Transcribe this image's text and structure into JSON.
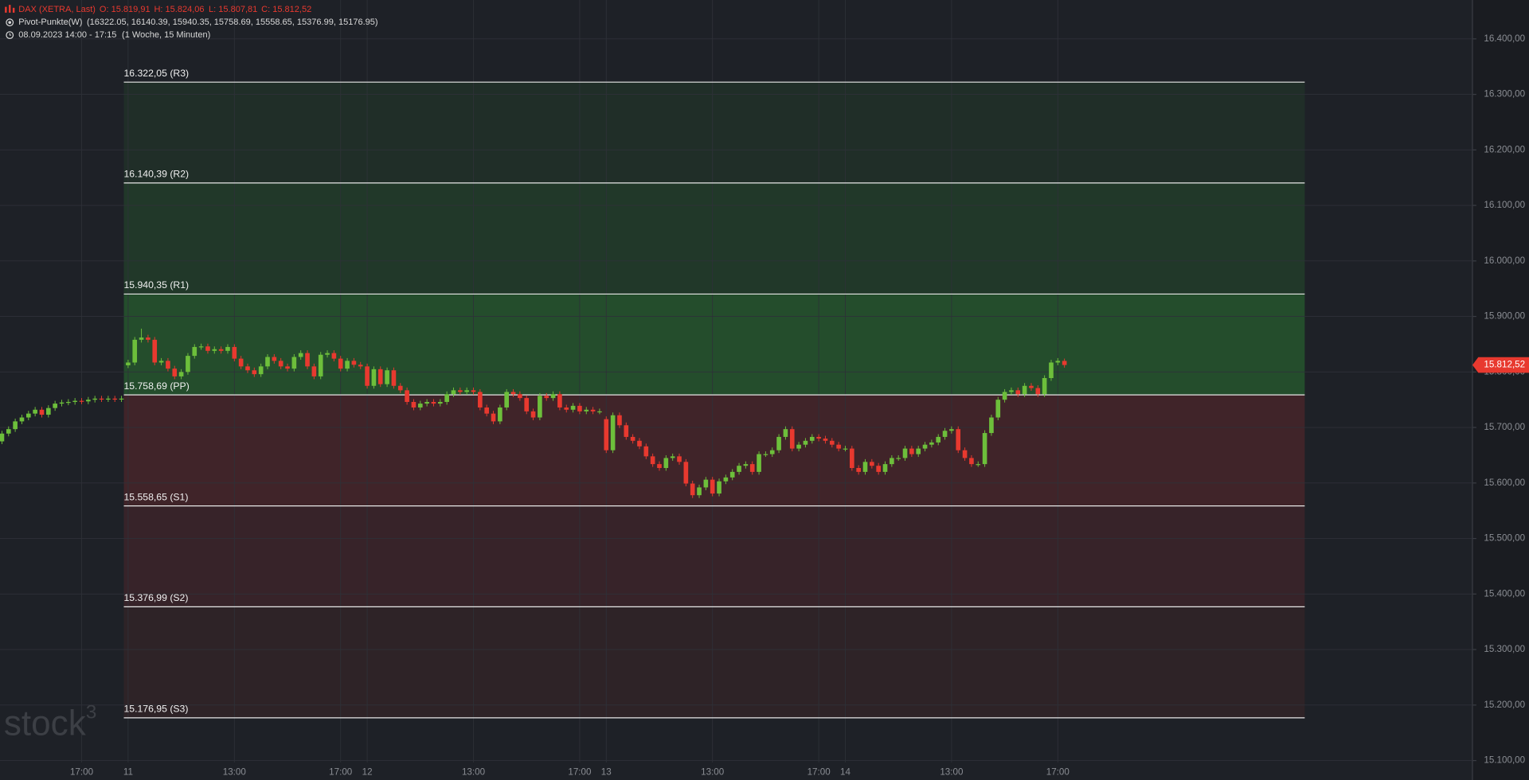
{
  "header": {
    "symbol": "DAX (XETRA, Last)",
    "ohlc": [
      "O: 15.819,91",
      "H: 15.824,06",
      "L: 15.807,81",
      "C: 15.812,52"
    ],
    "indicator": "Pivot-Punkte(W)",
    "indicator_values": "(16322.05,  16140.39,  15940.35,  15758.69,  15558.65,  15376.99,  15176.95)",
    "period": "08.09.2023 14:00 - 17:15",
    "period_info": "(1 Woche, 15 Minuten)"
  },
  "watermark": {
    "text": "stock",
    "sup": "3"
  },
  "chart_data": {
    "type": "candlestick",
    "ylim": [
      15065,
      16470
    ],
    "yticks": [
      {
        "value": 16400,
        "label": "16.400,00"
      },
      {
        "value": 16300,
        "label": "16.300,00"
      },
      {
        "value": 16200,
        "label": "16.200,00"
      },
      {
        "value": 16100,
        "label": "16.100,00"
      },
      {
        "value": 16000,
        "label": "16.000,00"
      },
      {
        "value": 15900,
        "label": "15.900,00"
      },
      {
        "value": 15800,
        "label": "15.800,00"
      },
      {
        "value": 15700,
        "label": "15.700,00"
      },
      {
        "value": 15600,
        "label": "15.600,00"
      },
      {
        "value": 15500,
        "label": "15.500,00"
      },
      {
        "value": 15400,
        "label": "15.400,00"
      },
      {
        "value": 15300,
        "label": "15.300,00"
      },
      {
        "value": 15200,
        "label": "15.200,00"
      },
      {
        "value": 15100,
        "label": "15.100,00"
      }
    ],
    "grid": true,
    "up_color": "#6dbf3b",
    "down_color": "#e8392f",
    "above_color": "#2e8b34",
    "below_color": "#7a2a2e",
    "pivots": [
      {
        "value": 16322.05,
        "label": "16.322,05 (R3)"
      },
      {
        "value": 16140.39,
        "label": "16.140,39 (R2)"
      },
      {
        "value": 15940.35,
        "label": "15.940,35 (R1)"
      },
      {
        "value": 15758.69,
        "label": "15.758,69 (PP)"
      },
      {
        "value": 15558.65,
        "label": "15.558,65 (S1)"
      },
      {
        "value": 15376.99,
        "label": "15.376,99 (S2)"
      },
      {
        "value": 15176.95,
        "label": "15.176,95 (S3)"
      }
    ],
    "last_price": {
      "value": 15812.52,
      "label": "15.812,52"
    },
    "categories": [
      null,
      null,
      null,
      null,
      null,
      null,
      null,
      null,
      null,
      null,
      null,
      null,
      "17:00",
      null,
      null,
      null,
      null,
      null,
      null,
      "11",
      null,
      null,
      null,
      null,
      null,
      null,
      null,
      null,
      null,
      null,
      null,
      null,
      null,
      null,
      null,
      "13:00",
      null,
      null,
      null,
      null,
      null,
      null,
      null,
      null,
      null,
      null,
      null,
      null,
      null,
      null,
      null,
      "17:00",
      null,
      null,
      null,
      "12",
      null,
      null,
      null,
      null,
      null,
      null,
      null,
      null,
      null,
      null,
      null,
      null,
      null,
      null,
      null,
      "13:00",
      null,
      null,
      null,
      null,
      null,
      null,
      null,
      null,
      null,
      null,
      null,
      null,
      null,
      null,
      null,
      "17:00",
      null,
      null,
      null,
      "13",
      null,
      null,
      null,
      null,
      null,
      null,
      null,
      null,
      null,
      null,
      null,
      null,
      null,
      null,
      null,
      "13:00",
      null,
      null,
      null,
      null,
      null,
      null,
      null,
      null,
      null,
      null,
      null,
      null,
      null,
      null,
      null,
      "17:00",
      null,
      null,
      null,
      "14",
      null,
      null,
      null,
      null,
      null,
      null,
      null,
      null,
      null,
      null,
      null,
      null,
      null,
      null,
      null,
      "13:00",
      null,
      null,
      null,
      null,
      null,
      null,
      null,
      null,
      null,
      null,
      null,
      null,
      null,
      null,
      null,
      "17:00",
      null
    ],
    "open": [
      15675,
      15689,
      15697,
      15711,
      15718,
      15725,
      15732,
      15723,
      15735,
      15743,
      15745,
      15746,
      15748,
      15747,
      15750,
      15752,
      15751,
      15752,
      15751,
      15812,
      15817,
      15858,
      15862,
      15858,
      15817,
      15820,
      15806,
      15792,
      15800,
      15829,
      15845,
      15846,
      15838,
      15841,
      15838,
      15845,
      15824,
      15810,
      15803,
      15796,
      15810,
      15827,
      15820,
      15810,
      15806,
      15827,
      15834,
      15810,
      15792,
      15831,
      15834,
      15824,
      15806,
      15820,
      15813,
      15810,
      15775,
      15805,
      15778,
      15803,
      15775,
      15767,
      15746,
      15736,
      15743,
      15746,
      15743,
      15746,
      15760,
      15767,
      15764,
      15767,
      15764,
      15736,
      15725,
      15711,
      15736,
      15764,
      15760,
      15753,
      15729,
      15718,
      15757,
      15753,
      15760,
      15736,
      15732,
      15739,
      15729,
      15732,
      15729,
      15715,
      15659,
      15722,
      15704,
      15683,
      15676,
      15666,
      15648,
      15634,
      15627,
      15645,
      15648,
      15638,
      15599,
      15578,
      15592,
      15606,
      15581,
      15603,
      15610,
      15620,
      15631,
      15634,
      15620,
      15652,
      15652,
      15659,
      15683,
      15697,
      15662,
      15669,
      15676,
      15683,
      15680,
      15676,
      15669,
      15662,
      15662,
      15627,
      15620,
      15638,
      15631,
      15620,
      15634,
      15645,
      15645,
      15662,
      15652,
      15662,
      15669,
      15673,
      15683,
      15694,
      15697,
      15659,
      15645,
      15634,
      15634,
      15690,
      15718,
      15750,
      15764,
      15767,
      15760,
      15775,
      15771,
      15760,
      15789,
      15817,
      15819.91
    ],
    "high": [
      15694,
      15702,
      15716,
      15723,
      15730,
      15737,
      15737,
      15740,
      15748,
      15750,
      15751,
      15753,
      15753,
      15755,
      15757,
      15757,
      15757,
      15757,
      15757,
      15822,
      15863,
      15878,
      15867,
      15863,
      15825,
      15825,
      15811,
      15805,
      15834,
      15850,
      15851,
      15851,
      15846,
      15846,
      15850,
      15850,
      15829,
      15815,
      15808,
      15815,
      15832,
      15832,
      15825,
      15815,
      15832,
      15839,
      15839,
      15815,
      15836,
      15839,
      15839,
      15829,
      15825,
      15825,
      15818,
      15815,
      15810,
      15810,
      15808,
      15808,
      15780,
      15772,
      15751,
      15748,
      15751,
      15751,
      15751,
      15765,
      15772,
      15772,
      15772,
      15772,
      15769,
      15741,
      15730,
      15741,
      15769,
      15769,
      15765,
      15758,
      15734,
      15762,
      15762,
      15765,
      15765,
      15741,
      15744,
      15744,
      15737,
      15737,
      15734,
      15720,
      15727,
      15727,
      15709,
      15688,
      15681,
      15671,
      15653,
      15639,
      15650,
      15653,
      15653,
      15643,
      15604,
      15597,
      15611,
      15611,
      15608,
      15615,
      15625,
      15636,
      15639,
      15639,
      15657,
      15657,
      15664,
      15688,
      15702,
      15702,
      15674,
      15681,
      15688,
      15688,
      15685,
      15681,
      15674,
      15667,
      15667,
      15632,
      15643,
      15643,
      15636,
      15639,
      15650,
      15650,
      15667,
      15667,
      15667,
      15674,
      15678,
      15688,
      15699,
      15702,
      15702,
      15664,
      15650,
      15639,
      15695,
      15723,
      15755,
      15769,
      15772,
      15772,
      15780,
      15780,
      15776,
      15794,
      15822,
      15825,
      15824.06
    ],
    "low": [
      15670,
      15684,
      15692,
      15706,
      15713,
      15720,
      15718,
      15718,
      15730,
      15738,
      15740,
      15741,
      15742,
      15742,
      15745,
      15746,
      15746,
      15746,
      15746,
      15807,
      15812,
      15853,
      15853,
      15812,
      15812,
      15801,
      15787,
      15787,
      15795,
      15824,
      15840,
      15833,
      15833,
      15833,
      15833,
      15819,
      15805,
      15798,
      15791,
      15791,
      15805,
      15815,
      15805,
      15801,
      15801,
      15822,
      15805,
      15787,
      15787,
      15826,
      15819,
      15801,
      15801,
      15808,
      15805,
      15770,
      15770,
      15773,
      15773,
      15770,
      15762,
      15741,
      15731,
      15731,
      15738,
      15738,
      15738,
      15741,
      15755,
      15759,
      15759,
      15759,
      15731,
      15720,
      15706,
      15706,
      15731,
      15755,
      15748,
      15724,
      15713,
      15713,
      15748,
      15748,
      15731,
      15727,
      15727,
      15724,
      15724,
      15724,
      15724,
      15654,
      15654,
      15699,
      15678,
      15671,
      15661,
      15643,
      15629,
      15622,
      15622,
      15640,
      15633,
      15594,
      15573,
      15573,
      15587,
      15576,
      15576,
      15598,
      15605,
      15615,
      15626,
      15615,
      15615,
      15647,
      15647,
      15654,
      15678,
      15657,
      15657,
      15664,
      15671,
      15675,
      15671,
      15664,
      15657,
      15657,
      15622,
      15615,
      15615,
      15626,
      15615,
      15615,
      15629,
      15640,
      15640,
      15647,
      15647,
      15657,
      15664,
      15668,
      15678,
      15689,
      15654,
      15640,
      15629,
      15629,
      15629,
      15685,
      15713,
      15745,
      15759,
      15755,
      15755,
      15766,
      15755,
      15755,
      15784,
      15812,
      15807.81
    ],
    "close": [
      15689,
      15697,
      15711,
      15718,
      15725,
      15732,
      15723,
      15735,
      15743,
      15745,
      15746,
      15748,
      15747,
      15750,
      15752,
      15751,
      15752,
      15751,
      15752,
      15817,
      15858,
      15862,
      15858,
      15817,
      15820,
      15806,
      15792,
      15800,
      15829,
      15845,
      15846,
      15838,
      15841,
      15838,
      15845,
      15824,
      15810,
      15803,
      15796,
      15810,
      15827,
      15820,
      15810,
      15806,
      15827,
      15834,
      15810,
      15792,
      15831,
      15834,
      15824,
      15806,
      15820,
      15813,
      15810,
      15775,
      15805,
      15778,
      15803,
      15775,
      15767,
      15746,
      15736,
      15743,
      15746,
      15743,
      15746,
      15760,
      15767,
      15764,
      15767,
      15764,
      15736,
      15725,
      15711,
      15736,
      15764,
      15760,
      15753,
      15729,
      15718,
      15757,
      15753,
      15760,
      15736,
      15732,
      15739,
      15729,
      15732,
      15729,
      15729,
      15659,
      15722,
      15704,
      15683,
      15676,
      15666,
      15648,
      15634,
      15627,
      15645,
      15648,
      15638,
      15599,
      15578,
      15592,
      15606,
      15581,
      15603,
      15610,
      15620,
      15631,
      15634,
      15620,
      15652,
      15652,
      15659,
      15683,
      15697,
      15662,
      15669,
      15676,
      15683,
      15680,
      15676,
      15669,
      15662,
      15662,
      15627,
      15620,
      15638,
      15631,
      15620,
      15634,
      15645,
      15645,
      15662,
      15652,
      15662,
      15669,
      15673,
      15683,
      15694,
      15697,
      15659,
      15645,
      15634,
      15634,
      15690,
      15718,
      15750,
      15764,
      15767,
      15760,
      15775,
      15771,
      15760,
      15789,
      15817,
      15820,
      15812.52
    ]
  }
}
